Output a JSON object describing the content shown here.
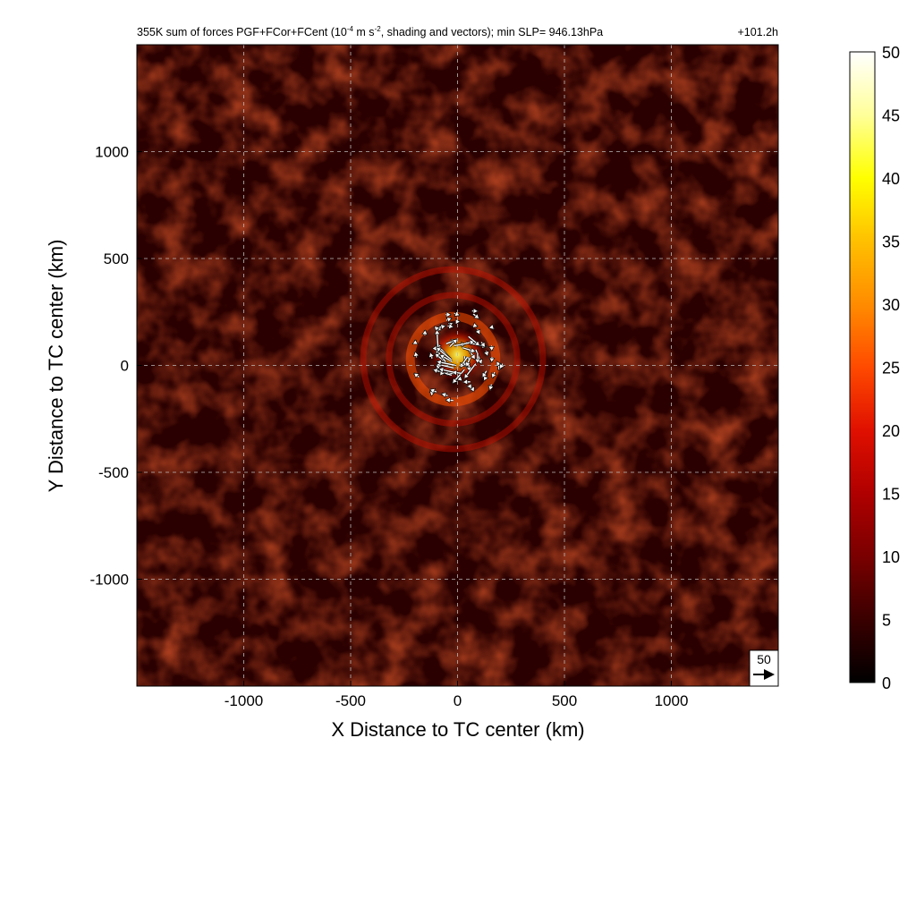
{
  "chart_data": {
    "type": "heatmap",
    "title": {
      "main": "355K sum of forces PGF+FCor+FCent (10",
      "exp1": "-4",
      "mid": " m s",
      "exp2": "-2",
      "tail": ", shading and vectors); min SLP= 946.13hPa",
      "time": "+101.2h"
    },
    "xlabel": "X Distance to TC center (km)",
    "ylabel": "Y Distance to TC center (km)",
    "xlim": [
      -1500,
      1500
    ],
    "ylim": [
      -1500,
      1500
    ],
    "x_ticks": [
      -1000,
      -500,
      0,
      500,
      1000
    ],
    "y_ticks": [
      1000,
      500,
      0,
      -500,
      -1000
    ],
    "grid": true,
    "grid_style": "dashed",
    "colorbar": {
      "ticks": [
        50,
        45,
        40,
        35,
        30,
        25,
        20,
        15,
        10,
        5,
        0
      ],
      "range": [
        0,
        50
      ],
      "colors": [
        "#000000",
        "#3a0000",
        "#7a0000",
        "#b00000",
        "#e01000",
        "#ff4a00",
        "#ff8c00",
        "#ffc000",
        "#ffff00",
        "#ffff9a",
        "#ffffff"
      ]
    },
    "vector_reference": {
      "label": "50",
      "value": 50
    },
    "features": {
      "max_center_km": [
        0,
        50
      ],
      "max_radius_km": 100,
      "max_value": 38,
      "eyewall_ring_radii_km": [
        200,
        300,
        420
      ],
      "background_level": 7
    }
  }
}
